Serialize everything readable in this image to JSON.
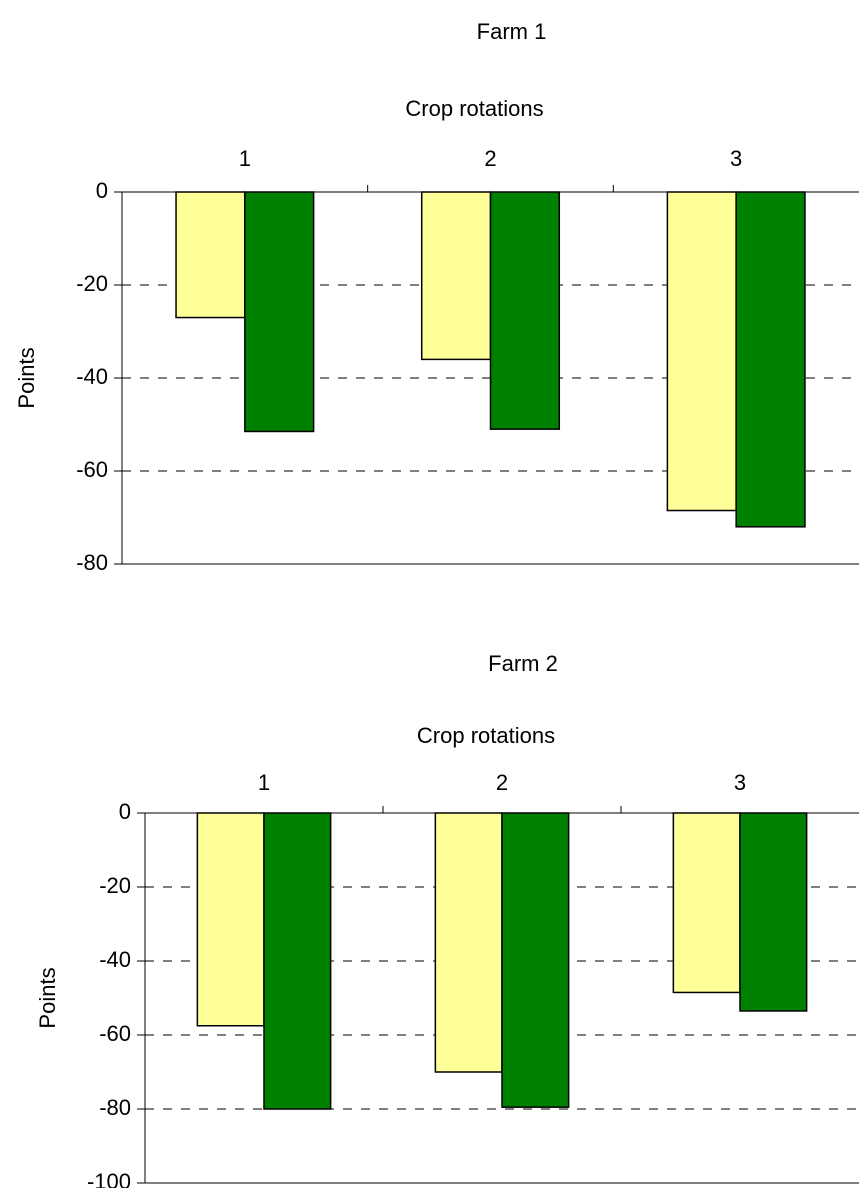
{
  "chart_data": [
    {
      "type": "bar",
      "title": "Farm 1",
      "xlabel": "Crop rotations",
      "ylabel": "Points",
      "categories": [
        "1",
        "2",
        "3"
      ],
      "series": [
        {
          "values": [
            -27,
            -36,
            -68.5
          ],
          "color": "#ffff99"
        },
        {
          "values": [
            -51.5,
            -51,
            -72
          ],
          "color": "#008000"
        }
      ],
      "ylim": [
        -80,
        0
      ],
      "yticks": [
        0,
        -20,
        -40,
        -60,
        -80
      ],
      "ytick_labels": [
        "0",
        "-20",
        "-40",
        "-60",
        "-80"
      ],
      "grid": true,
      "xaxis_position": "top"
    },
    {
      "type": "bar",
      "title": "Farm 2",
      "xlabel": "Crop rotations",
      "ylabel": "Points",
      "categories": [
        "1",
        "2",
        "3"
      ],
      "series": [
        {
          "values": [
            -57.5,
            -70,
            -48.5
          ],
          "color": "#ffff99"
        },
        {
          "values": [
            -80,
            -79.5,
            -53.5
          ],
          "color": "#008000"
        }
      ],
      "ylim": [
        -100,
        0
      ],
      "yticks": [
        0,
        -20,
        -40,
        -60,
        -80,
        -100
      ],
      "ytick_labels": [
        "0",
        "-20",
        "-40",
        "-60",
        "-80",
        "-100"
      ],
      "grid": true,
      "xaxis_position": "top"
    }
  ]
}
